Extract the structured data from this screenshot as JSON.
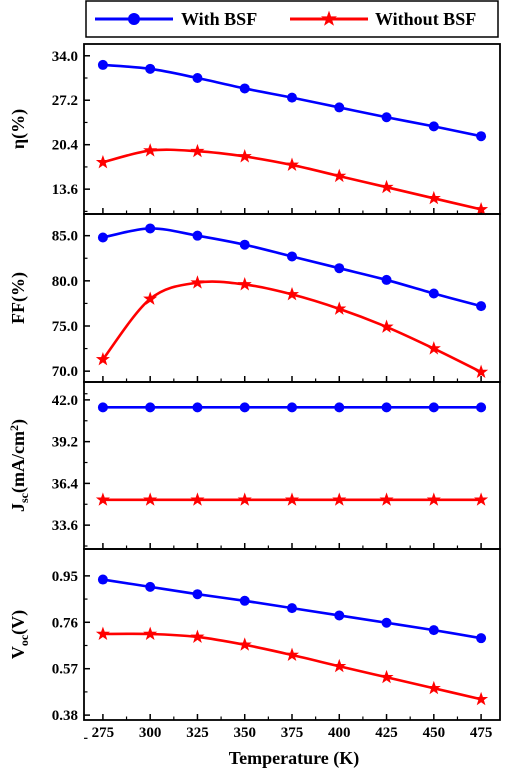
{
  "chart_data": {
    "type": "line",
    "xlabel": "Temperature (K)",
    "x": [
      275,
      300,
      325,
      350,
      375,
      400,
      425,
      450,
      475
    ],
    "xlim": [
      265,
      485
    ],
    "x_ticks": [
      "275",
      "300",
      "325",
      "350",
      "375",
      "400",
      "425",
      "450",
      "475"
    ],
    "legend": {
      "placement": "top",
      "entries": [
        {
          "name": "With BSF",
          "color": "#0000ff",
          "marker": "circle"
        },
        {
          "name": "Without BSF",
          "color": "#ff0000",
          "marker": "star"
        }
      ]
    },
    "panels": [
      {
        "ylabel_main": "η(%)",
        "ylabel_sub": "",
        "ylabel_tail": "",
        "ylim": [
          9.8,
          35.8
        ],
        "y_ticks": [
          13.6,
          20.4,
          27.2,
          34.0
        ],
        "y_tick_labels": [
          "13.6",
          "20.4",
          "27.2",
          "34.0"
        ],
        "series": [
          {
            "name": "With BSF",
            "values": [
              32.6,
              32.0,
              30.6,
              29.0,
              27.6,
              26.1,
              24.6,
              23.2,
              21.7
            ]
          },
          {
            "name": "Without BSF",
            "values": [
              17.7,
              19.5,
              19.4,
              18.6,
              17.3,
              15.6,
              13.9,
              12.2,
              10.5
            ]
          }
        ]
      },
      {
        "ylabel_main": "FF(%)",
        "ylabel_sub": "",
        "ylabel_tail": "",
        "ylim": [
          68.8,
          87.4
        ],
        "y_ticks": [
          70.0,
          75.0,
          80.0,
          85.0
        ],
        "y_tick_labels": [
          "70.0",
          "75.0",
          "80.0",
          "85.0"
        ],
        "series": [
          {
            "name": "With BSF",
            "values": [
              84.8,
              85.8,
              85.0,
              84.0,
              82.7,
              81.4,
              80.1,
              78.6,
              77.2
            ]
          },
          {
            "name": "Without BSF",
            "values": [
              71.3,
              78.0,
              79.8,
              79.6,
              78.5,
              76.9,
              74.9,
              72.5,
              69.9
            ]
          }
        ]
      },
      {
        "ylabel_main": "J",
        "ylabel_sub": "sc",
        "ylabel_tail": "(mA/cm",
        "ylabel_sup": "2",
        "ylabel_end": ")",
        "ylim": [
          32.0,
          43.2
        ],
        "y_ticks": [
          33.6,
          36.4,
          39.2,
          42.0
        ],
        "y_tick_labels": [
          "33.6",
          "36.4",
          "39.2",
          "42.0"
        ],
        "series": [
          {
            "name": "With BSF",
            "values": [
              41.5,
              41.5,
              41.5,
              41.5,
              41.5,
              41.5,
              41.5,
              41.5,
              41.5
            ]
          },
          {
            "name": "Without BSF",
            "values": [
              35.3,
              35.3,
              35.3,
              35.3,
              35.3,
              35.3,
              35.3,
              35.3,
              35.3
            ]
          }
        ]
      },
      {
        "ylabel_main": "V",
        "ylabel_sub": "oc",
        "ylabel_tail": "(V)",
        "ylim": [
          0.36,
          1.06
        ],
        "y_ticks": [
          0.38,
          0.57,
          0.76,
          0.95
        ],
        "y_tick_labels": [
          "0.38",
          "0.57",
          "0.76",
          "0.95"
        ],
        "series": [
          {
            "name": "With BSF",
            "values": [
              0.935,
              0.905,
              0.875,
              0.848,
              0.818,
              0.788,
              0.758,
              0.728,
              0.695
            ]
          },
          {
            "name": "Without BSF",
            "values": [
              0.712,
              0.712,
              0.7,
              0.668,
              0.626,
              0.58,
              0.535,
              0.49,
              0.445
            ]
          }
        ]
      }
    ]
  }
}
